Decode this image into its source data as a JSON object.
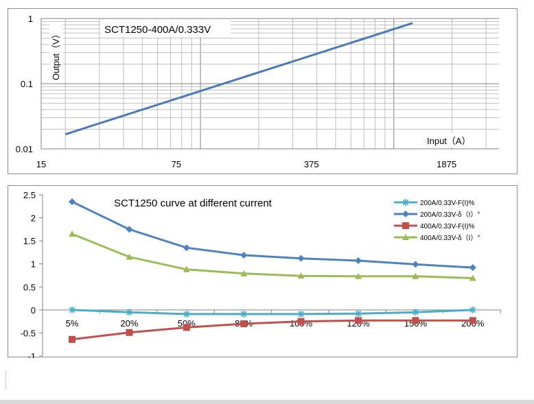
{
  "chart_data": [
    {
      "type": "line",
      "title": "SCT1250-400A/0.333V",
      "xlabel": "Input（A）",
      "ylabel": "Output（V）",
      "x_scale": "log",
      "y_scale": "log",
      "xlim": [
        15,
        3500
      ],
      "ylim": [
        0.01,
        1
      ],
      "x_tick_labels": [
        "15",
        "75",
        "375",
        "1875"
      ],
      "y_tick_labels": [
        "1",
        "0.1",
        "0.01"
      ],
      "grid": true,
      "series": [
        {
          "name": "",
          "color": "#4a7ab5",
          "x": [
            20,
            1250
          ],
          "y": [
            0.0167,
            0.85
          ]
        }
      ]
    },
    {
      "type": "line",
      "title": "SCT1250 curve at different current",
      "categories": [
        "5%",
        "20%",
        "50%",
        "80%",
        "100%",
        "120%",
        "150%",
        "200%"
      ],
      "ylim": [
        -1,
        2.5
      ],
      "y_tick_labels": [
        "2.5",
        "2",
        "1.5",
        "1",
        "0.5",
        "0",
        "-0.5",
        "-1"
      ],
      "legend_position": "top-right",
      "grid": false,
      "series": [
        {
          "name": "200A/0.33V-F(I)%",
          "color": "#4bacc6",
          "marker": "asterisk",
          "values": [
            0,
            -0.05,
            -0.09,
            -0.09,
            -0.09,
            -0.08,
            -0.05,
            0
          ]
        },
        {
          "name": "200A/0.33V-δ（I）°",
          "color": "#4f81bd",
          "marker": "diamond",
          "values": [
            2.35,
            1.75,
            1.35,
            1.19,
            1.12,
            1.07,
            0.99,
            0.92
          ]
        },
        {
          "name": "400A/0.33V-F(I)%",
          "color": "#c0504d",
          "marker": "square",
          "values": [
            -0.64,
            -0.49,
            -0.38,
            -0.3,
            -0.25,
            -0.23,
            -0.23,
            -0.23
          ]
        },
        {
          "name": "400A/0.33V-δ（I）°",
          "color": "#9bbb59",
          "marker": "triangle",
          "values": [
            1.65,
            1.15,
            0.88,
            0.79,
            0.74,
            0.73,
            0.73,
            0.69
          ]
        }
      ]
    }
  ]
}
